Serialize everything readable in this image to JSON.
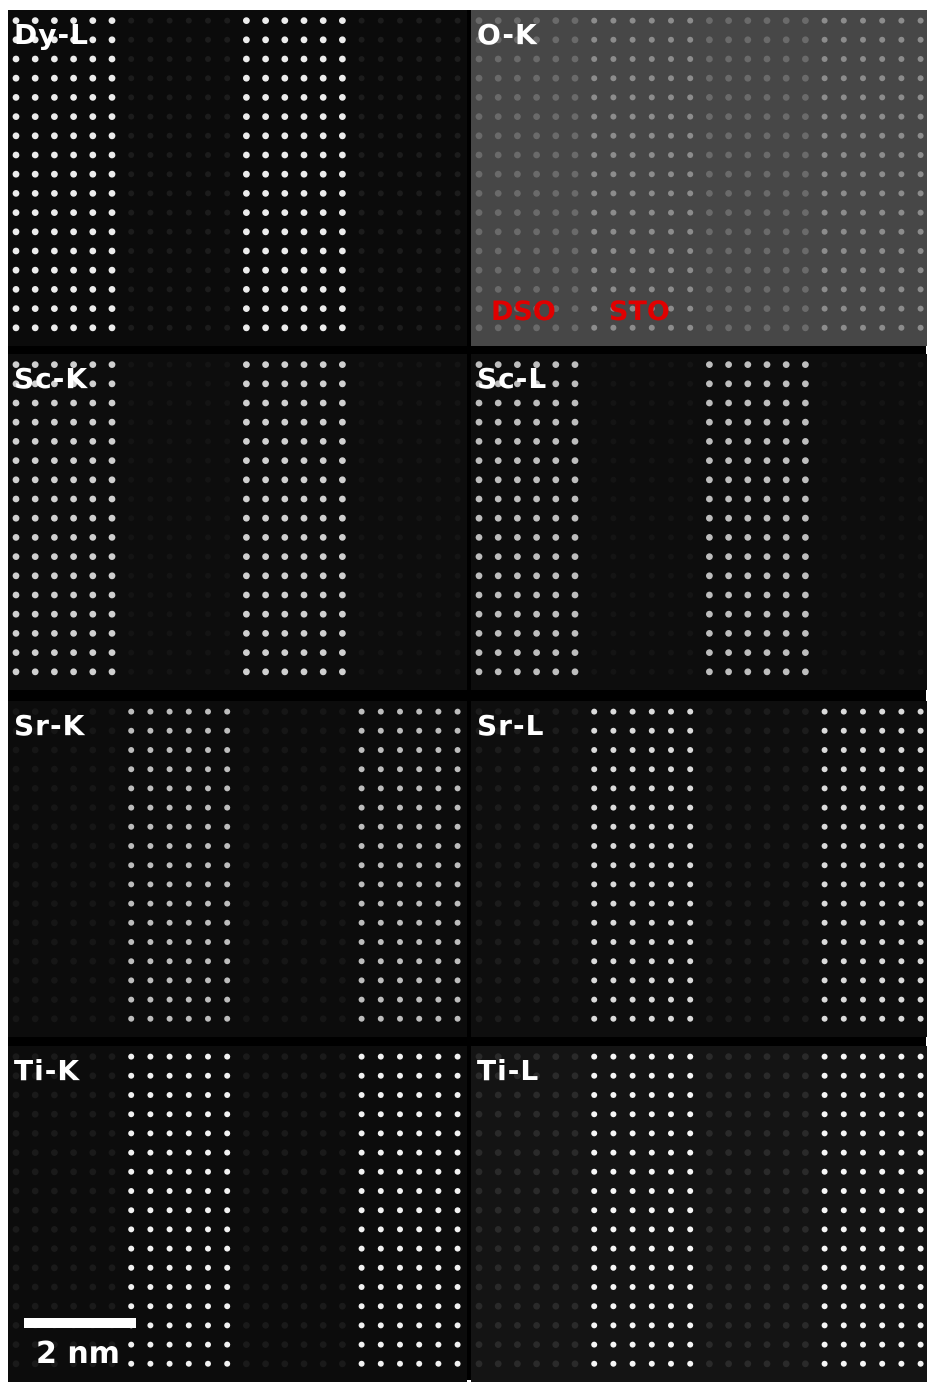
{
  "panels": [
    {
      "label": "Dy-L",
      "bg": "#0b0b0b",
      "colorA": "#ececec",
      "colorB": "#1c1c1c",
      "bandAFirst": true
    },
    {
      "label": "O-K",
      "bg": "#474747",
      "colorA": "#6a6a6a",
      "colorB": "#8c8c8c",
      "bandAFirst": true
    },
    {
      "label": "Sc-K",
      "bg": "#0d0d0d",
      "colorA": "#cfcfcf",
      "colorB": "#141414",
      "bandAFirst": true
    },
    {
      "label": "Sc-L",
      "bg": "#0d0d0d",
      "colorA": "#bdbdbd",
      "colorB": "#141414",
      "bandAFirst": true
    },
    {
      "label": "Sr-K",
      "bg": "#0c0c0c",
      "colorA": "#161616",
      "colorB": "#bdbdbd",
      "bandAFirst": true
    },
    {
      "label": "Sr-L",
      "bg": "#0e0e0e",
      "colorA": "#1c1c1c",
      "colorB": "#dadada",
      "bandAFirst": true
    },
    {
      "label": "Ti-K",
      "bg": "#0c0c0c",
      "colorA": "#1a1a1a",
      "colorB": "#f2f2f2",
      "bandAFirst": true
    },
    {
      "label": "Ti-L",
      "bg": "#141414",
      "colorA": "#2a2a2a",
      "colorB": "#f6f6f6",
      "bandAFirst": true
    }
  ],
  "annotations": {
    "dso": "DSO",
    "sto": "STO"
  },
  "scale_bar": {
    "label": "2 nm"
  }
}
